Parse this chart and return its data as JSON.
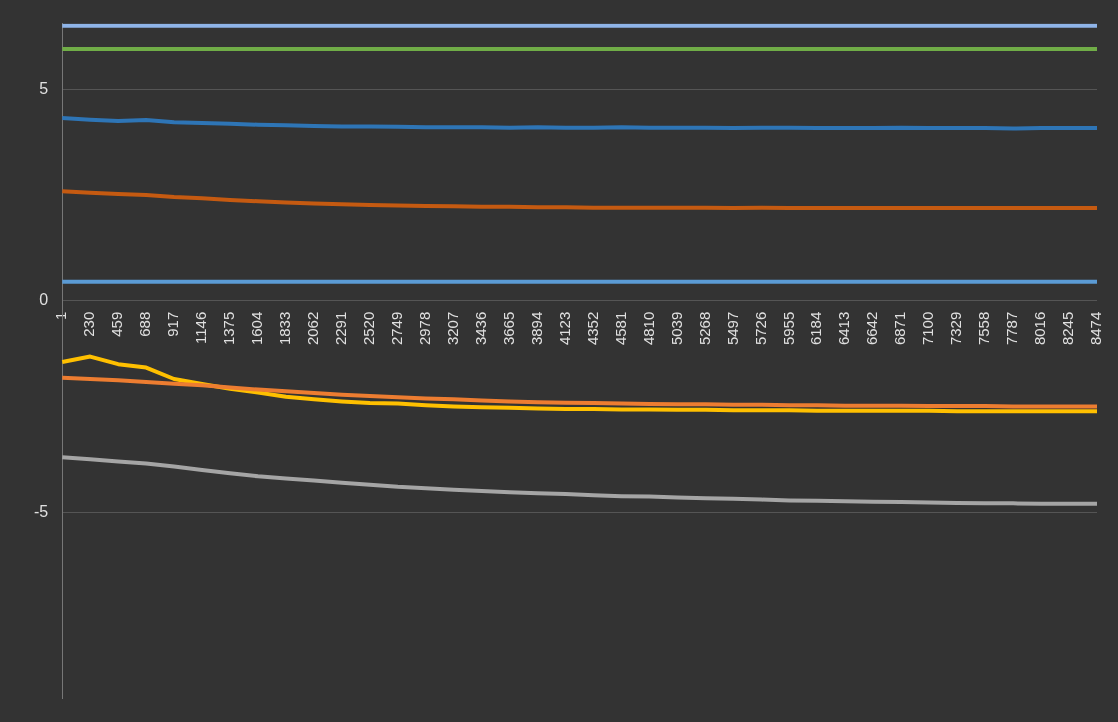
{
  "chart_data": {
    "type": "line",
    "categories": [
      "1",
      "230",
      "459",
      "688",
      "917",
      "1146",
      "1375",
      "1604",
      "1833",
      "2062",
      "2291",
      "2520",
      "2749",
      "2978",
      "3207",
      "3436",
      "3665",
      "3894",
      "4123",
      "4352",
      "4581",
      "4810",
      "5039",
      "5268",
      "5497",
      "5726",
      "5955",
      "6184",
      "6413",
      "6642",
      "6871",
      "7100",
      "7329",
      "7558",
      "7787",
      "8016",
      "8245",
      "8474"
    ],
    "series": [
      {
        "color": "#8fb4e8",
        "values": [
          6.5,
          6.5,
          6.5,
          6.5,
          6.5,
          6.5,
          6.5,
          6.5,
          6.5,
          6.5,
          6.5,
          6.5,
          6.5,
          6.5,
          6.5,
          6.5,
          6.5,
          6.5,
          6.5,
          6.5,
          6.5,
          6.5,
          6.5,
          6.5,
          6.5,
          6.5,
          6.5,
          6.5,
          6.5,
          6.5,
          6.5,
          6.5,
          6.5,
          6.5,
          6.5,
          6.5,
          6.5,
          6.5
        ]
      },
      {
        "color": "#70ad47",
        "values": [
          5.95,
          5.95,
          5.95,
          5.95,
          5.95,
          5.95,
          5.95,
          5.95,
          5.95,
          5.95,
          5.95,
          5.95,
          5.95,
          5.95,
          5.95,
          5.95,
          5.95,
          5.95,
          5.95,
          5.95,
          5.95,
          5.95,
          5.95,
          5.95,
          5.95,
          5.95,
          5.95,
          5.95,
          5.95,
          5.95,
          5.95,
          5.95,
          5.95,
          5.95,
          5.95,
          5.95,
          5.95,
          5.95
        ]
      },
      {
        "color": "#2e75b6",
        "values": [
          4.32,
          4.28,
          4.25,
          4.27,
          4.22,
          4.2,
          4.18,
          4.16,
          4.15,
          4.13,
          4.12,
          4.12,
          4.11,
          4.1,
          4.1,
          4.1,
          4.09,
          4.1,
          4.09,
          4.09,
          4.1,
          4.09,
          4.09,
          4.09,
          4.08,
          4.09,
          4.09,
          4.08,
          4.08,
          4.08,
          4.09,
          4.08,
          4.08,
          4.08,
          4.07,
          4.08,
          4.08,
          4.08
        ]
      },
      {
        "color": "#c55a11",
        "values": [
          2.59,
          2.55,
          2.52,
          2.5,
          2.45,
          2.42,
          2.38,
          2.35,
          2.32,
          2.3,
          2.28,
          2.26,
          2.25,
          2.24,
          2.23,
          2.22,
          2.22,
          2.21,
          2.21,
          2.2,
          2.2,
          2.2,
          2.2,
          2.2,
          2.19,
          2.2,
          2.19,
          2.19,
          2.19,
          2.19,
          2.19,
          2.19,
          2.19,
          2.19,
          2.19,
          2.19,
          2.19,
          2.19
        ]
      },
      {
        "color": "#5b9bd5",
        "values": [
          0.45,
          0.45,
          0.45,
          0.45,
          0.45,
          0.45,
          0.45,
          0.45,
          0.45,
          0.45,
          0.45,
          0.45,
          0.45,
          0.45,
          0.45,
          0.45,
          0.45,
          0.45,
          0.45,
          0.45,
          0.45,
          0.45,
          0.45,
          0.45,
          0.45,
          0.45,
          0.45,
          0.45,
          0.45,
          0.45,
          0.45,
          0.45,
          0.45,
          0.45,
          0.45,
          0.45,
          0.45,
          0.45
        ]
      },
      {
        "color": "#ed7d31",
        "values": [
          -1.82,
          -1.85,
          -1.88,
          -1.92,
          -1.96,
          -2.0,
          -2.05,
          -2.1,
          -2.14,
          -2.18,
          -2.22,
          -2.25,
          -2.28,
          -2.31,
          -2.33,
          -2.36,
          -2.38,
          -2.4,
          -2.41,
          -2.42,
          -2.43,
          -2.44,
          -2.45,
          -2.45,
          -2.46,
          -2.46,
          -2.47,
          -2.47,
          -2.48,
          -2.48,
          -2.48,
          -2.49,
          -2.49,
          -2.49,
          -2.5,
          -2.5,
          -2.5,
          -2.5
        ]
      },
      {
        "color": "#ffc000",
        "values": [
          -1.45,
          -1.32,
          -1.5,
          -1.58,
          -1.85,
          -1.97,
          -2.08,
          -2.17,
          -2.27,
          -2.33,
          -2.38,
          -2.42,
          -2.43,
          -2.47,
          -2.5,
          -2.52,
          -2.53,
          -2.55,
          -2.56,
          -2.56,
          -2.57,
          -2.57,
          -2.58,
          -2.58,
          -2.59,
          -2.59,
          -2.59,
          -2.6,
          -2.6,
          -2.6,
          -2.6,
          -2.6,
          -2.61,
          -2.61,
          -2.61,
          -2.61,
          -2.61,
          -2.61
        ]
      },
      {
        "color": "#a5a5a5",
        "values": [
          -3.7,
          -3.75,
          -3.8,
          -3.85,
          -3.92,
          -4.0,
          -4.08,
          -4.15,
          -4.2,
          -4.25,
          -4.3,
          -4.35,
          -4.4,
          -4.43,
          -4.47,
          -4.5,
          -4.53,
          -4.55,
          -4.57,
          -4.6,
          -4.62,
          -4.63,
          -4.65,
          -4.67,
          -4.68,
          -4.7,
          -4.72,
          -4.73,
          -4.74,
          -4.75,
          -4.76,
          -4.77,
          -4.78,
          -4.79,
          -4.79,
          -4.8,
          -4.8,
          -4.8
        ]
      }
    ],
    "ylim": [
      -9.4,
      6.55
    ],
    "yticks": [
      -5,
      0,
      5
    ],
    "grid": "y",
    "legend": false,
    "marker": "none",
    "line_style": "solid"
  }
}
